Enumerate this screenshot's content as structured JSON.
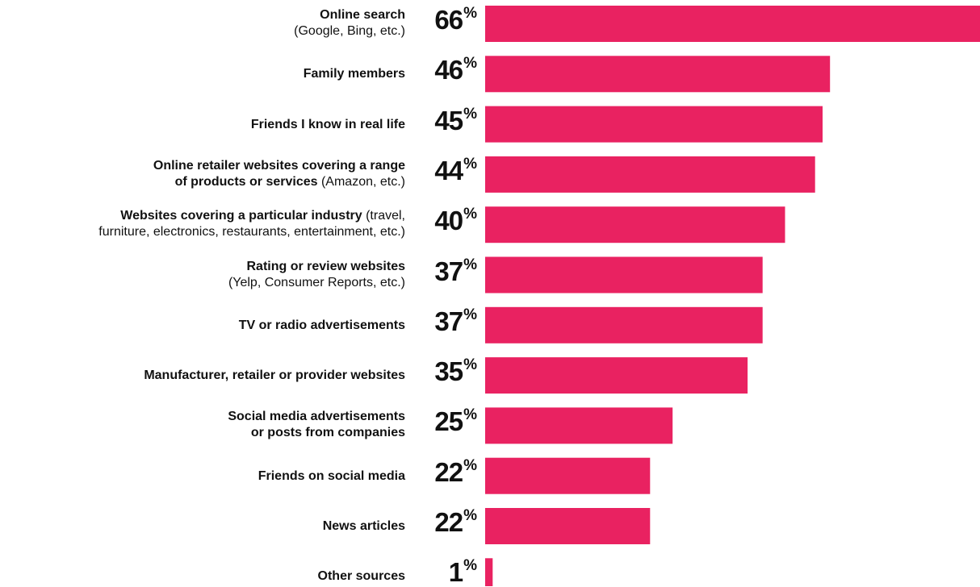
{
  "colors": {
    "bar": "#E92261",
    "text": "#111111",
    "background": "#FFFFFF"
  },
  "chart_data": {
    "type": "bar",
    "orientation": "horizontal",
    "unit": "%",
    "xlim": [
      0,
      66
    ],
    "grid": false,
    "categories": [
      "Online search (Google, Bing, etc.)",
      "Family members",
      "Friends I know in real life",
      "Online retailer websites covering a range of products or services (Amazon, etc.)",
      "Websites covering a particular industry (travel, furniture, electronics, restaurants, entertainment, etc.)",
      "Rating or review websites (Yelp, Consumer Reports, etc.)",
      "TV or radio advertisements",
      "Manufacturer, retailer or provider websites",
      "Social media advertisements or posts from companies",
      "Friends on social media",
      "News articles",
      "Other sources"
    ],
    "values": [
      66,
      46,
      45,
      44,
      40,
      37,
      37,
      35,
      25,
      22,
      22,
      1
    ],
    "labels": [
      {
        "main": "Online search",
        "sub": "(Google, Bing, etc.)",
        "mode": "two-line"
      },
      {
        "main": "Family members",
        "sub": "",
        "mode": "single"
      },
      {
        "main": "Friends I know in real life",
        "sub": "",
        "mode": "single"
      },
      {
        "main_line1": "Online retailer websites covering a range",
        "main_line2": "of products or services",
        "sub_line2": " (Amazon, etc.)",
        "mode": "two-line-split"
      },
      {
        "main_line1": "Websites covering a particular industry",
        "sub_line1": " (travel,",
        "sub_line2": "furniture, electronics, restaurants, entertainment, etc.)",
        "mode": "two-line-mixed"
      },
      {
        "main": "Rating or review websites",
        "sub": "(Yelp, Consumer Reports, etc.)",
        "mode": "two-line"
      },
      {
        "main": "TV or radio advertisements",
        "sub": "",
        "mode": "single"
      },
      {
        "main": "Manufacturer, retailer or provider websites",
        "sub": "",
        "mode": "single"
      },
      {
        "main_line1": "Social media advertisements",
        "main_line2": "or posts from companies",
        "mode": "two-line-bold"
      },
      {
        "main": "Friends on social media",
        "sub": "",
        "mode": "single"
      },
      {
        "main": "News articles",
        "sub": "",
        "mode": "single"
      },
      {
        "main": "Other sources",
        "sub": "",
        "mode": "single"
      }
    ],
    "value_label_suffix": "%"
  }
}
